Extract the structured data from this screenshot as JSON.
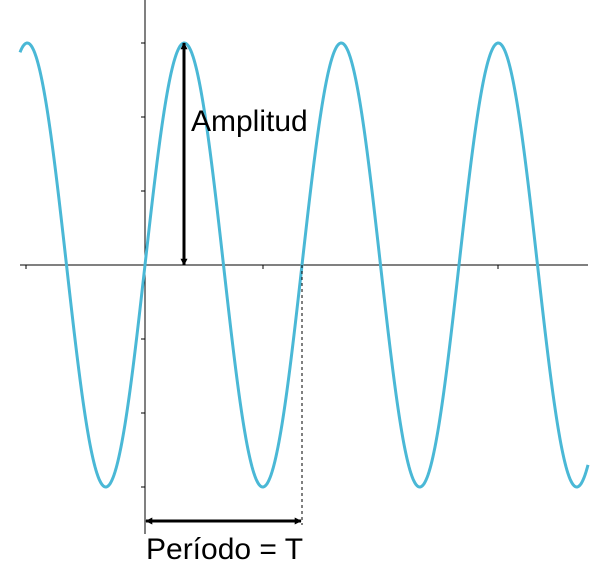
{
  "diagram": {
    "labels": {
      "amplitude": "Amplitud",
      "period": "Período = T"
    },
    "colors": {
      "wave": "#4ab8d6",
      "axis": "#000000",
      "arrow": "#000000",
      "guide": "#000000",
      "background": "#ffffff"
    }
  }
}
